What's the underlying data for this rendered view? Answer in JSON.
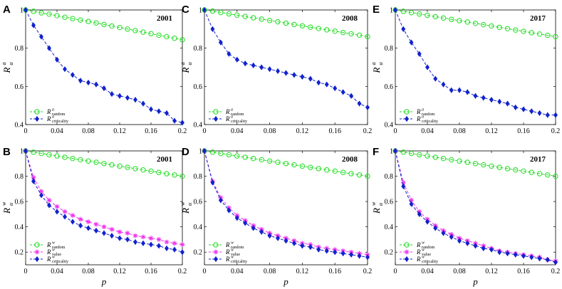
{
  "figure": {
    "xlabel": "p",
    "ylabel": "R",
    "ylabel_sub": "α",
    "x_ticks": [
      "0",
      "0.04",
      "0.08",
      "0.12",
      "0.16",
      "0.2"
    ],
    "top_y_ticks": [
      "0.4",
      "0.6",
      "0.8",
      "1"
    ],
    "bottom_y_ticks": [
      "0.2",
      "0.4",
      "0.6",
      "0.8",
      "1"
    ]
  },
  "colors": {
    "random": "#22dd22",
    "value": "#ee33ee",
    "criticality": "#1122cc"
  },
  "chart_data": [
    {
      "type": "line",
      "panel": "A",
      "year": "2001",
      "ylabel_sup": "a",
      "xlim": [
        0,
        0.2
      ],
      "ylim": [
        0.4,
        1.0
      ],
      "x": [
        0,
        0.01,
        0.02,
        0.03,
        0.04,
        0.05,
        0.06,
        0.07,
        0.08,
        0.09,
        0.1,
        0.11,
        0.12,
        0.13,
        0.14,
        0.15,
        0.16,
        0.17,
        0.18,
        0.19,
        0.2
      ],
      "series": [
        {
          "name": "random",
          "label_sup": "a",
          "label_sub": "random",
          "marker": "circle",
          "values": [
            1.0,
            0.993,
            0.985,
            0.978,
            0.97,
            0.962,
            0.955,
            0.947,
            0.94,
            0.932,
            0.924,
            0.916,
            0.908,
            0.9,
            0.892,
            0.884,
            0.876,
            0.868,
            0.86,
            0.852,
            0.844
          ]
        },
        {
          "name": "criticality",
          "label_sup": "a",
          "label_sub": "criticality",
          "marker": "diamond",
          "values": [
            1.0,
            0.92,
            0.86,
            0.8,
            0.74,
            0.69,
            0.66,
            0.63,
            0.62,
            0.61,
            0.59,
            0.56,
            0.55,
            0.54,
            0.53,
            0.51,
            0.48,
            0.47,
            0.46,
            0.42,
            0.41
          ]
        }
      ]
    },
    {
      "type": "line",
      "panel": "C",
      "year": "2008",
      "ylabel_sup": "a",
      "xlim": [
        0,
        0.2
      ],
      "ylim": [
        0.4,
        1.0
      ],
      "x": [
        0,
        0.01,
        0.02,
        0.03,
        0.04,
        0.05,
        0.06,
        0.07,
        0.08,
        0.09,
        0.1,
        0.11,
        0.12,
        0.13,
        0.14,
        0.15,
        0.16,
        0.17,
        0.18,
        0.19,
        0.2
      ],
      "series": [
        {
          "name": "random",
          "label_sup": "a",
          "label_sub": "random",
          "marker": "circle",
          "values": [
            1.0,
            0.994,
            0.987,
            0.98,
            0.973,
            0.966,
            0.959,
            0.952,
            0.945,
            0.938,
            0.931,
            0.924,
            0.917,
            0.91,
            0.903,
            0.896,
            0.889,
            0.882,
            0.875,
            0.868,
            0.86
          ]
        },
        {
          "name": "criticality",
          "label_sup": "a",
          "label_sub": "criticality",
          "marker": "diamond",
          "values": [
            1.0,
            0.9,
            0.83,
            0.77,
            0.74,
            0.72,
            0.71,
            0.7,
            0.69,
            0.68,
            0.67,
            0.66,
            0.65,
            0.64,
            0.62,
            0.61,
            0.59,
            0.57,
            0.55,
            0.51,
            0.49
          ]
        }
      ]
    },
    {
      "type": "line",
      "panel": "E",
      "year": "2017",
      "ylabel_sup": "a",
      "xlim": [
        0,
        0.2
      ],
      "ylim": [
        0.4,
        1.0
      ],
      "x": [
        0,
        0.01,
        0.02,
        0.03,
        0.04,
        0.05,
        0.06,
        0.07,
        0.08,
        0.09,
        0.1,
        0.11,
        0.12,
        0.13,
        0.14,
        0.15,
        0.16,
        0.17,
        0.18,
        0.19,
        0.2
      ],
      "series": [
        {
          "name": "random",
          "label_sup": "a",
          "label_sub": "random",
          "marker": "circle",
          "values": [
            1.0,
            0.993,
            0.986,
            0.979,
            0.972,
            0.965,
            0.958,
            0.951,
            0.944,
            0.937,
            0.93,
            0.923,
            0.916,
            0.909,
            0.902,
            0.895,
            0.888,
            0.881,
            0.874,
            0.867,
            0.86
          ]
        },
        {
          "name": "criticality",
          "label_sup": "a",
          "label_sub": "criticality",
          "marker": "diamond",
          "values": [
            1.0,
            0.9,
            0.83,
            0.77,
            0.7,
            0.64,
            0.61,
            0.58,
            0.58,
            0.57,
            0.55,
            0.54,
            0.53,
            0.52,
            0.51,
            0.49,
            0.48,
            0.47,
            0.46,
            0.45,
            0.45
          ]
        }
      ]
    },
    {
      "type": "line",
      "panel": "B",
      "year": "2001",
      "ylabel_sup": "w",
      "xlim": [
        0,
        0.2
      ],
      "ylim": [
        0.1,
        1.0
      ],
      "x": [
        0,
        0.01,
        0.02,
        0.03,
        0.04,
        0.05,
        0.06,
        0.07,
        0.08,
        0.09,
        0.1,
        0.11,
        0.12,
        0.13,
        0.14,
        0.15,
        0.16,
        0.17,
        0.18,
        0.19,
        0.2
      ],
      "series": [
        {
          "name": "random",
          "label_sup": "w",
          "label_sub": "random",
          "marker": "circle",
          "values": [
            1.0,
            0.99,
            0.98,
            0.97,
            0.96,
            0.95,
            0.94,
            0.93,
            0.92,
            0.91,
            0.9,
            0.89,
            0.88,
            0.87,
            0.86,
            0.85,
            0.84,
            0.83,
            0.82,
            0.81,
            0.8
          ]
        },
        {
          "name": "value",
          "label_sup": "w",
          "label_sub": "value",
          "marker": "star",
          "values": [
            1.0,
            0.79,
            0.68,
            0.61,
            0.56,
            0.52,
            0.49,
            0.46,
            0.44,
            0.42,
            0.4,
            0.38,
            0.36,
            0.35,
            0.33,
            0.32,
            0.31,
            0.3,
            0.28,
            0.27,
            0.26
          ]
        },
        {
          "name": "criticality",
          "label_sup": "w",
          "label_sub": "criticality",
          "marker": "diamond",
          "values": [
            1.0,
            0.76,
            0.65,
            0.57,
            0.52,
            0.48,
            0.44,
            0.41,
            0.39,
            0.37,
            0.35,
            0.33,
            0.31,
            0.3,
            0.28,
            0.27,
            0.26,
            0.25,
            0.23,
            0.22,
            0.2
          ]
        }
      ]
    },
    {
      "type": "line",
      "panel": "D",
      "year": "2008",
      "ylabel_sup": "w",
      "xlim": [
        0,
        0.2
      ],
      "ylim": [
        0.1,
        1.0
      ],
      "x": [
        0,
        0.01,
        0.02,
        0.03,
        0.04,
        0.05,
        0.06,
        0.07,
        0.08,
        0.09,
        0.1,
        0.11,
        0.12,
        0.13,
        0.14,
        0.15,
        0.16,
        0.17,
        0.18,
        0.19,
        0.2
      ],
      "series": [
        {
          "name": "random",
          "label_sup": "w",
          "label_sub": "random",
          "marker": "circle",
          "values": [
            1.0,
            0.99,
            0.98,
            0.97,
            0.96,
            0.95,
            0.94,
            0.93,
            0.92,
            0.91,
            0.9,
            0.89,
            0.88,
            0.87,
            0.86,
            0.85,
            0.84,
            0.83,
            0.82,
            0.81,
            0.8
          ]
        },
        {
          "name": "value",
          "label_sup": "w",
          "label_sub": "value",
          "marker": "star",
          "values": [
            1.0,
            0.76,
            0.63,
            0.55,
            0.49,
            0.45,
            0.41,
            0.38,
            0.35,
            0.33,
            0.31,
            0.29,
            0.27,
            0.26,
            0.24,
            0.23,
            0.22,
            0.21,
            0.2,
            0.19,
            0.18
          ]
        },
        {
          "name": "criticality",
          "label_sup": "w",
          "label_sub": "criticality",
          "marker": "diamond",
          "values": [
            1.0,
            0.75,
            0.61,
            0.53,
            0.47,
            0.43,
            0.39,
            0.36,
            0.33,
            0.31,
            0.29,
            0.27,
            0.25,
            0.24,
            0.22,
            0.21,
            0.2,
            0.19,
            0.18,
            0.17,
            0.16
          ]
        }
      ]
    },
    {
      "type": "line",
      "panel": "F",
      "year": "2017",
      "ylabel_sup": "w",
      "xlim": [
        0,
        0.2
      ],
      "ylim": [
        0.1,
        1.0
      ],
      "x": [
        0,
        0.01,
        0.02,
        0.03,
        0.04,
        0.05,
        0.06,
        0.07,
        0.08,
        0.09,
        0.1,
        0.11,
        0.12,
        0.13,
        0.14,
        0.15,
        0.16,
        0.17,
        0.18,
        0.19,
        0.2
      ],
      "series": [
        {
          "name": "random",
          "label_sup": "w",
          "label_sub": "random",
          "marker": "circle",
          "values": [
            1.0,
            0.99,
            0.98,
            0.97,
            0.96,
            0.95,
            0.94,
            0.93,
            0.92,
            0.91,
            0.9,
            0.89,
            0.88,
            0.87,
            0.86,
            0.85,
            0.84,
            0.83,
            0.82,
            0.81,
            0.8
          ]
        },
        {
          "name": "value",
          "label_sup": "w",
          "label_sub": "value",
          "marker": "star",
          "values": [
            1.0,
            0.75,
            0.61,
            0.52,
            0.46,
            0.41,
            0.37,
            0.34,
            0.31,
            0.29,
            0.27,
            0.25,
            0.23,
            0.21,
            0.2,
            0.19,
            0.18,
            0.17,
            0.16,
            0.14,
            0.13
          ]
        },
        {
          "name": "criticality",
          "label_sup": "w",
          "label_sub": "criticality",
          "marker": "diamond",
          "values": [
            1.0,
            0.72,
            0.58,
            0.5,
            0.44,
            0.39,
            0.35,
            0.32,
            0.29,
            0.27,
            0.25,
            0.23,
            0.22,
            0.2,
            0.19,
            0.18,
            0.17,
            0.16,
            0.15,
            0.14,
            0.12
          ]
        }
      ]
    }
  ]
}
